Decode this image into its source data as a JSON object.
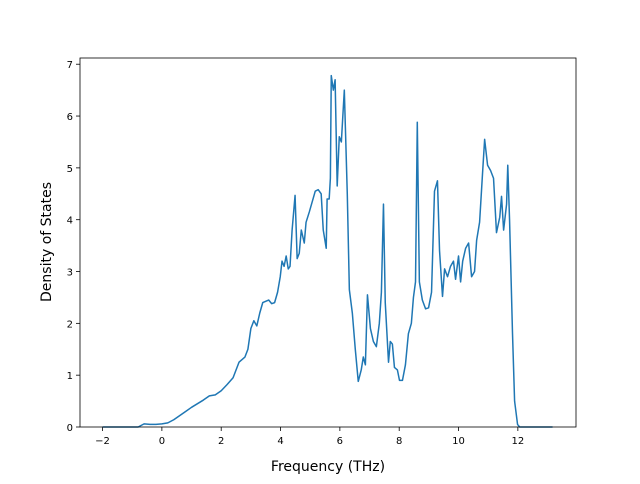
{
  "chart_data": {
    "type": "line",
    "xlabel": "Frequency (THz)",
    "ylabel": "Density of States",
    "xlim": [
      -2.76,
      13.96
    ],
    "ylim": [
      0,
      7.12
    ],
    "xticks": [
      {
        "value": -2,
        "label": "−2"
      },
      0,
      2,
      4,
      6,
      8,
      10,
      12
    ],
    "yticks": [
      0,
      1,
      2,
      3,
      4,
      5,
      6,
      7
    ],
    "series": [
      {
        "color": "#1f77b4",
        "x": [
          -2.0,
          -0.8,
          -0.6,
          -0.4,
          -0.2,
          0,
          0.2,
          0.4,
          0.6,
          0.8,
          1.0,
          1.2,
          1.4,
          1.6,
          1.8,
          2.0,
          2.2,
          2.4,
          2.5,
          2.6,
          2.8,
          2.9,
          3.0,
          3.1,
          3.2,
          3.3,
          3.4,
          3.6,
          3.7,
          3.8,
          3.9,
          3.99,
          4.05,
          4.12,
          4.19,
          4.26,
          4.32,
          4.39,
          4.49,
          4.56,
          4.63,
          4.7,
          4.8,
          4.86,
          4.97,
          5.17,
          5.27,
          5.37,
          5.44,
          5.54,
          5.57,
          5.64,
          5.68,
          5.71,
          5.78,
          5.84,
          5.91,
          5.98,
          6.05,
          6.15,
          6.25,
          6.32,
          6.42,
          6.52,
          6.62,
          6.72,
          6.79,
          6.86,
          6.93,
          7.03,
          7.13,
          7.23,
          7.33,
          7.4,
          7.47,
          7.53,
          7.64,
          7.7,
          7.77,
          7.84,
          7.94,
          8.01,
          8.11,
          8.21,
          8.31,
          8.41,
          8.48,
          8.55,
          8.61,
          8.68,
          8.78,
          8.89,
          8.99,
          9.09,
          9.19,
          9.29,
          9.36,
          9.46,
          9.53,
          9.63,
          9.73,
          9.83,
          9.9,
          10.0,
          10.07,
          10.14,
          10.24,
          10.34,
          10.44,
          10.54,
          10.61,
          10.71,
          10.81,
          10.88,
          10.98,
          11.08,
          11.18,
          11.28,
          11.39,
          11.45,
          11.52,
          11.62,
          11.66,
          11.72,
          11.82,
          11.89,
          11.99,
          12.06,
          13.17
        ],
        "values": [
          0,
          0,
          0.06,
          0.05,
          0.05,
          0.06,
          0.08,
          0.14,
          0.22,
          0.3,
          0.38,
          0.45,
          0.52,
          0.6,
          0.62,
          0.7,
          0.82,
          0.95,
          1.1,
          1.25,
          1.35,
          1.5,
          1.9,
          2.05,
          1.95,
          2.2,
          2.4,
          2.45,
          2.38,
          2.4,
          2.6,
          2.9,
          3.2,
          3.1,
          3.3,
          3.05,
          3.1,
          3.8,
          4.47,
          3.25,
          3.35,
          3.8,
          3.55,
          3.95,
          4.15,
          4.55,
          4.58,
          4.5,
          3.8,
          3.45,
          4.4,
          4.4,
          4.8,
          6.78,
          6.5,
          6.7,
          4.65,
          5.6,
          5.5,
          6.5,
          4.5,
          2.65,
          2.2,
          1.5,
          0.88,
          1.1,
          1.35,
          1.2,
          2.55,
          1.9,
          1.65,
          1.55,
          2.0,
          2.6,
          4.3,
          2.4,
          1.25,
          1.65,
          1.6,
          1.15,
          1.1,
          0.9,
          0.9,
          1.2,
          1.8,
          2.0,
          2.5,
          2.8,
          5.88,
          2.8,
          2.45,
          2.28,
          2.3,
          2.6,
          4.55,
          4.75,
          3.4,
          2.52,
          3.05,
          2.9,
          3.1,
          3.2,
          2.85,
          3.3,
          2.8,
          3.2,
          3.45,
          3.55,
          2.9,
          3.0,
          3.6,
          3.95,
          4.9,
          5.55,
          5.05,
          4.95,
          4.8,
          3.75,
          4.05,
          4.45,
          3.8,
          4.3,
          5.05,
          4.0,
          1.8,
          0.5,
          0.05,
          0,
          0
        ]
      }
    ]
  }
}
